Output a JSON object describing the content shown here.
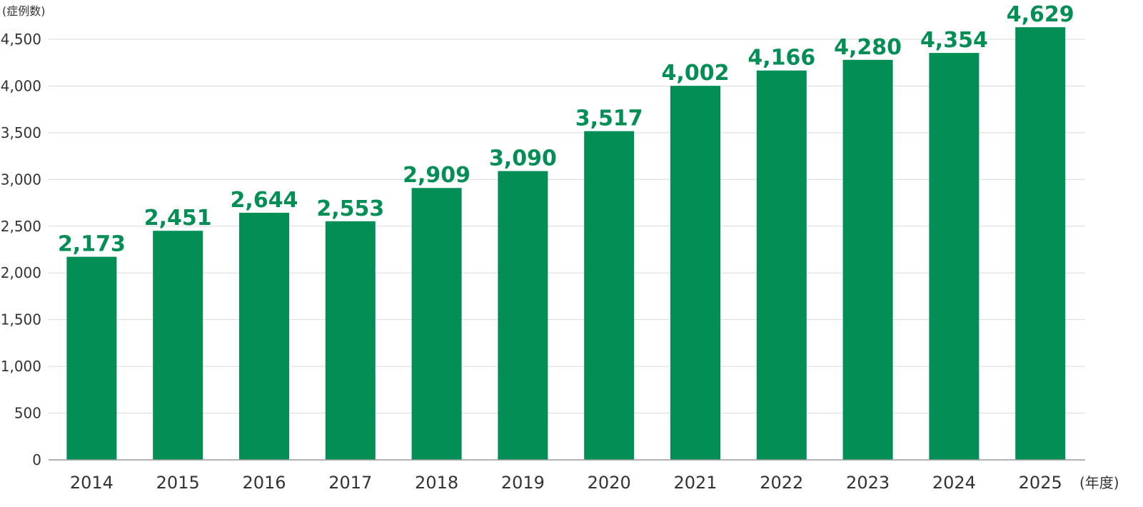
{
  "chart_data": {
    "type": "bar",
    "title": "",
    "ylabel": "(症例数)",
    "xlabel": "(年度)",
    "categories": [
      "2014",
      "2015",
      "2016",
      "2017",
      "2018",
      "2019",
      "2020",
      "2021",
      "2022",
      "2023",
      "2024",
      "2025"
    ],
    "values": [
      2173,
      2451,
      2644,
      2553,
      2909,
      3090,
      3517,
      4002,
      4166,
      4280,
      4354,
      4629
    ],
    "value_labels": [
      "2,173",
      "2,451",
      "2,644",
      "2,553",
      "2,909",
      "3,090",
      "3,517",
      "4,002",
      "4,166",
      "4,280",
      "4,354",
      "4,629"
    ],
    "ylim": [
      0,
      4500
    ],
    "yticks": [
      0,
      500,
      1000,
      1500,
      2000,
      2500,
      3000,
      3500,
      4000,
      4500
    ],
    "ytick_labels": [
      "0",
      "500",
      "1,000",
      "1,500",
      "2,000",
      "2,500",
      "3,000",
      "3,500",
      "4,000",
      "4,500"
    ],
    "grid": true,
    "legend": "none",
    "colors": {
      "bar": "#038e56",
      "value_label": "#038e56",
      "grid": "#d9d9d9",
      "axis": "#9a9a9a",
      "text": "#333333"
    }
  }
}
